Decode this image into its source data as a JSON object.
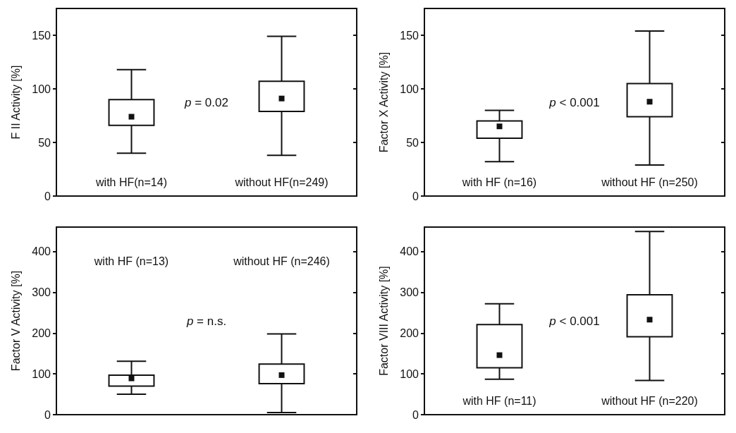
{
  "chart_data": [
    {
      "type": "box",
      "ylabel": "F II Activity [%]",
      "categories": [
        "with HF(n=14)",
        "without HF(n=249)"
      ],
      "boxes": [
        {
          "low": 40,
          "q1": 66,
          "median": 74,
          "q3": 90,
          "high": 118
        },
        {
          "low": 38,
          "q1": 79,
          "median": 91,
          "q3": 107,
          "high": 149
        }
      ],
      "ylim": [
        0,
        175
      ],
      "yticks": [
        0,
        50,
        100,
        150
      ],
      "annotations": [
        "p = 0.02"
      ]
    },
    {
      "type": "box",
      "ylabel": "Factor X Activity [%]",
      "categories": [
        "with HF (n=16)",
        "without HF (n=250)"
      ],
      "boxes": [
        {
          "low": 32,
          "q1": 54,
          "median": 65,
          "q3": 70,
          "high": 80
        },
        {
          "low": 29,
          "q1": 74,
          "median": 88,
          "q3": 105,
          "high": 154
        }
      ],
      "ylim": [
        0,
        175
      ],
      "yticks": [
        0,
        50,
        100,
        150
      ],
      "annotations": [
        "p < 0.001"
      ]
    },
    {
      "type": "box",
      "ylabel": "Factor V Activity [%]",
      "categories": [
        "with HF (n=13)",
        "without HF (n=246)"
      ],
      "boxes": [
        {
          "low": 50,
          "q1": 70,
          "median": 89,
          "q3": 97,
          "high": 131
        },
        {
          "low": 5,
          "q1": 76,
          "median": 97,
          "q3": 124,
          "high": 198
        }
      ],
      "ylim": [
        0,
        460
      ],
      "yticks": [
        0,
        100,
        200,
        300,
        400
      ],
      "annotations": [
        "p = n.s."
      ]
    },
    {
      "type": "box",
      "ylabel": "Factor VIII Activity [%]",
      "categories": [
        "with HF (n=11)",
        "without HF (n=220)"
      ],
      "boxes": [
        {
          "low": 87,
          "q1": 115,
          "median": 146,
          "q3": 221,
          "high": 272
        },
        {
          "low": 84,
          "q1": 191,
          "median": 233,
          "q3": 294,
          "high": 449
        }
      ],
      "ylim": [
        0,
        460
      ],
      "yticks": [
        0,
        100,
        200,
        300,
        400
      ],
      "annotations": [
        "p < 0.001"
      ]
    }
  ]
}
